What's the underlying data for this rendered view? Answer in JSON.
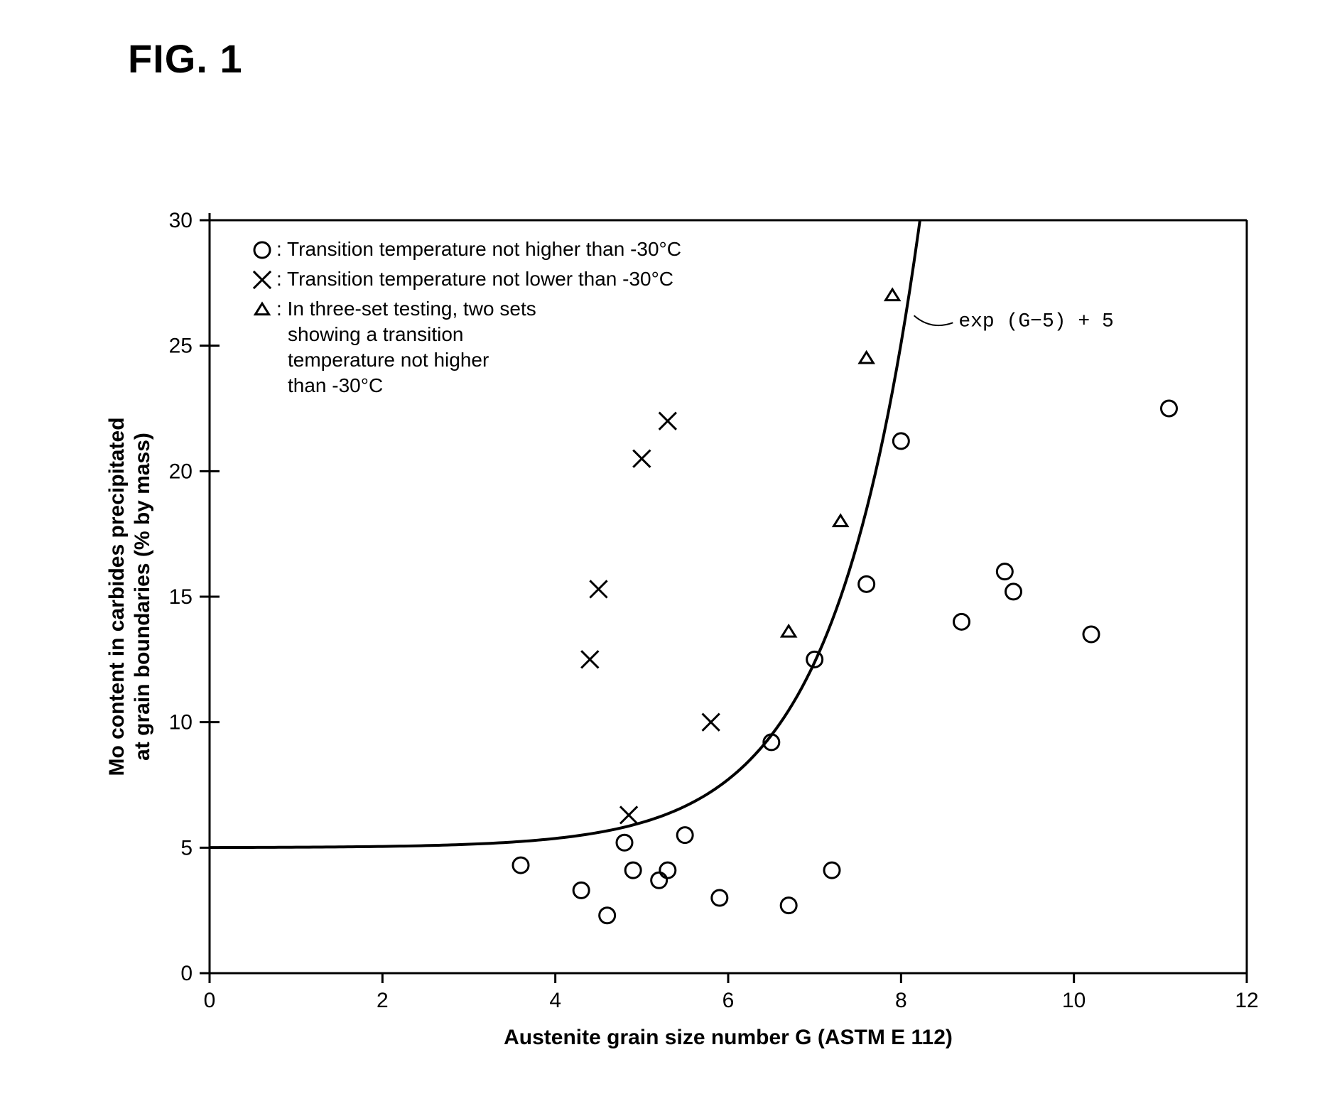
{
  "figure_title": "FIG. 1",
  "chart": {
    "type": "scatter",
    "background_color": "#ffffff",
    "axis_color": "#000000",
    "grid": false,
    "stroke_width_axis": 3,
    "stroke_width_tick": 3,
    "stroke_width_curve": 4,
    "marker_size": 22,
    "marker_stroke_width": 3,
    "xlabel": "Austenite grain size number G (ASTM E 112)",
    "ylabel_line1": "Mo content in carbides precipitated",
    "ylabel_line2": "at grain boundaries (% by mass)",
    "label_fontsize": 30,
    "tick_fontsize": 30,
    "legend_fontsize": 28,
    "xlim": [
      0,
      12
    ],
    "ylim": [
      0,
      30
    ],
    "xticks": [
      0,
      2,
      4,
      6,
      8,
      10,
      12
    ],
    "yticks": [
      0,
      5,
      10,
      15,
      20,
      25,
      30
    ],
    "curve_formula": "exp (G−5) + 5",
    "formula_fontsize": 28,
    "legend": {
      "items": [
        {
          "marker": "circle",
          "text": ": Transition temperature not higher than -30°C"
        },
        {
          "marker": "cross",
          "text": ": Transition temperature not lower than -30°C"
        },
        {
          "marker": "triangle",
          "text": ": In three-set testing, two sets"
        }
      ],
      "triangle_continuation": [
        "showing a transition",
        "temperature not higher",
        "than -30°C"
      ]
    },
    "series": {
      "circle": [
        [
          3.6,
          4.3
        ],
        [
          4.3,
          3.3
        ],
        [
          4.6,
          2.3
        ],
        [
          4.8,
          5.2
        ],
        [
          4.9,
          4.1
        ],
        [
          5.2,
          3.7
        ],
        [
          5.3,
          4.1
        ],
        [
          5.5,
          5.5
        ],
        [
          5.9,
          3.0
        ],
        [
          6.5,
          9.2
        ],
        [
          6.7,
          2.7
        ],
        [
          7.0,
          12.5
        ],
        [
          7.2,
          4.1
        ],
        [
          7.6,
          15.5
        ],
        [
          8.0,
          21.2
        ],
        [
          8.7,
          14.0
        ],
        [
          9.2,
          16.0
        ],
        [
          9.3,
          15.2
        ],
        [
          10.2,
          13.5
        ],
        [
          11.1,
          22.5
        ]
      ],
      "cross": [
        [
          4.4,
          12.5
        ],
        [
          4.5,
          15.3
        ],
        [
          4.85,
          6.3
        ],
        [
          5.0,
          20.5
        ],
        [
          5.3,
          22.0
        ],
        [
          5.8,
          10.0
        ]
      ],
      "triangle": [
        [
          6.7,
          13.6
        ],
        [
          7.3,
          18.0
        ],
        [
          7.6,
          24.5
        ],
        [
          7.9,
          27.0
        ]
      ]
    }
  }
}
